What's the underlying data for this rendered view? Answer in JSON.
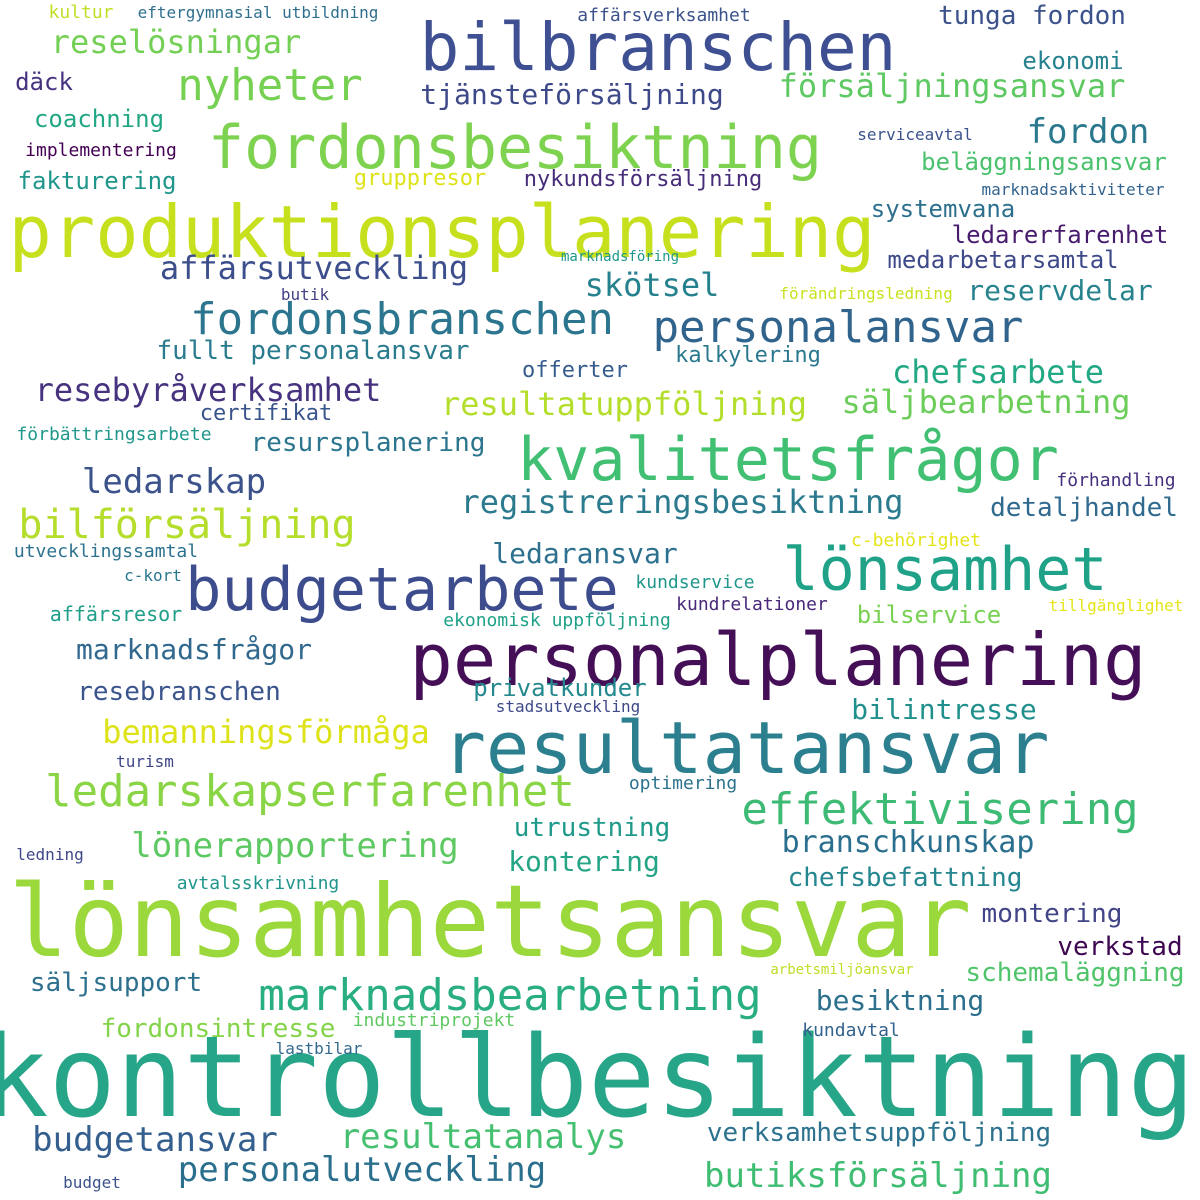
{
  "words": [
    {
      "text": "kontrollbesiktning",
      "color": "#27a589"
    },
    {
      "text": "lönsamhetsansvar",
      "color": "#9ad83c"
    },
    {
      "text": "produktionsplanering",
      "color": "#c6e01e"
    },
    {
      "text": "personalplanering",
      "color": "#440f56"
    },
    {
      "text": "resultatansvar",
      "color": "#2c7f8e"
    },
    {
      "text": "bilbranschen",
      "color": "#3e5092"
    },
    {
      "text": "fordonsbesiktning",
      "color": "#7dd24f"
    },
    {
      "text": "budgetarbete",
      "color": "#3c4c8d"
    },
    {
      "text": "lönsamhet",
      "color": "#1fa287"
    },
    {
      "text": "kvalitetsfrågor",
      "color": "#41bf73"
    },
    {
      "text": "marknadsbearbetning",
      "color": "#28ae80"
    },
    {
      "text": "ledarskapserfarenhet",
      "color": "#8ad545"
    },
    {
      "text": "effektivisering",
      "color": "#3dbb74"
    },
    {
      "text": "fordonsbranschen",
      "color": "#2b758e"
    },
    {
      "text": "personalansvar",
      "color": "#31648d"
    },
    {
      "text": "nyheter",
      "color": "#76d153"
    },
    {
      "text": "bilförsäljning",
      "color": "#b5dd2b"
    },
    {
      "text": "personalutveckling",
      "color": "#2b6f8e"
    },
    {
      "text": "lönerapportering",
      "color": "#5ec962"
    },
    {
      "text": "butiksförsäljning",
      "color": "#3fbd72"
    },
    {
      "text": "resultatanalys",
      "color": "#45bf70"
    },
    {
      "text": "budgetansvar",
      "color": "#345e8d"
    },
    {
      "text": "ledarskap",
      "color": "#3b528b"
    },
    {
      "text": "fordon",
      "color": "#2a788e"
    },
    {
      "text": "resebyråverksamhet",
      "color": "#46327e"
    },
    {
      "text": "registreringsbesiktning",
      "color": "#2b7a8e"
    },
    {
      "text": "försäljningsansvar",
      "color": "#5ec962"
    },
    {
      "text": "resultatuppföljning",
      "color": "#b4de2c"
    },
    {
      "text": "chefsarbete",
      "color": "#22a884"
    },
    {
      "text": "säljbearbetning",
      "color": "#6ccd5a"
    },
    {
      "text": "affärsutveckling",
      "color": "#3c4e8b"
    },
    {
      "text": "bemanningsförmåga",
      "color": "#dde318"
    },
    {
      "text": "reselösningar",
      "color": "#74d055"
    },
    {
      "text": "tjänsteförsäljning",
      "color": "#3e4989"
    },
    {
      "text": "skötsel",
      "color": "#26818e"
    },
    {
      "text": "branschkunskap",
      "color": "#2a6f8e"
    },
    {
      "text": "marknadsfrågor",
      "color": "#30688e"
    },
    {
      "text": "ledaransvar",
      "color": "#2d718e"
    },
    {
      "text": "reservdelar",
      "color": "#26838e"
    },
    {
      "text": "bilintresse",
      "color": "#21908d"
    },
    {
      "text": "kontering",
      "color": "#25a585"
    },
    {
      "text": "besiktning",
      "color": "#2d708e"
    },
    {
      "text": "detaljhandel",
      "color": "#306a8e"
    },
    {
      "text": "resebranschen",
      "color": "#3a548c"
    },
    {
      "text": "fullt personalansvar",
      "color": "#2a7b8e"
    },
    {
      "text": "resursplanering",
      "color": "#2b758e"
    },
    {
      "text": "verksamhetsuppföljning",
      "color": "#2c728e"
    },
    {
      "text": "schemaläggning",
      "color": "#50c46a"
    },
    {
      "text": "chefsbefattning",
      "color": "#24868e"
    },
    {
      "text": "tunga fordon",
      "color": "#3b528b"
    },
    {
      "text": "utrustning",
      "color": "#1f9a8a"
    },
    {
      "text": "privatkunder",
      "color": "#23898e"
    },
    {
      "text": "fordonsintresse",
      "color": "#84d44b"
    },
    {
      "text": "säljsupport",
      "color": "#2d708e"
    },
    {
      "text": "montering",
      "color": "#414487"
    },
    {
      "text": "verkstad",
      "color": "#3e0751"
    },
    {
      "text": "beläggningsansvar",
      "color": "#4ac16d"
    },
    {
      "text": "systemvana",
      "color": "#2d708e"
    },
    {
      "text": "medarbetarsamtal",
      "color": "#3e4989"
    },
    {
      "text": "ledarerfarenhet",
      "color": "#481b6d"
    },
    {
      "text": "coachning",
      "color": "#22a785"
    },
    {
      "text": "fakturering",
      "color": "#1f958b"
    },
    {
      "text": "nykundsförsäljning",
      "color": "#472c7a"
    },
    {
      "text": "gruppresor",
      "color": "#dde318"
    },
    {
      "text": "kalkylering",
      "color": "#2a788e"
    },
    {
      "text": "offerter",
      "color": "#365c8d"
    },
    {
      "text": "certifikat",
      "color": "#39558c"
    },
    {
      "text": "bilservice",
      "color": "#78d152"
    },
    {
      "text": "ekonomi",
      "color": "#26828e"
    },
    {
      "text": "däck",
      "color": "#46327e"
    },
    {
      "text": "affärsresor",
      "color": "#1f9e89"
    },
    {
      "text": "affärsverksamhet",
      "color": "#3b528b"
    },
    {
      "text": "implementering",
      "color": "#440154"
    },
    {
      "text": "förbättringsarbete",
      "color": "#1f988b"
    },
    {
      "text": "utvecklingssamtal",
      "color": "#2c728e"
    },
    {
      "text": "ekonomisk uppföljning",
      "color": "#1fa188"
    },
    {
      "text": "avtalsskrivning",
      "color": "#1f958b"
    },
    {
      "text": "förhandling",
      "color": "#46307e"
    },
    {
      "text": "kundservice",
      "color": "#1f968b"
    },
    {
      "text": "kundrelationer",
      "color": "#482878"
    },
    {
      "text": "c-behörighet",
      "color": "#e5e419"
    },
    {
      "text": "c-kort",
      "color": "#2a788e"
    },
    {
      "text": "optimering",
      "color": "#2c728e"
    },
    {
      "text": "industriprojekt",
      "color": "#5ec962"
    },
    {
      "text": "kundavtal",
      "color": "#33638d"
    },
    {
      "text": "lastbilar",
      "color": "#31688e"
    },
    {
      "text": "stadsutveckling",
      "color": "#3e4989"
    },
    {
      "text": "turism",
      "color": "#3f4788"
    },
    {
      "text": "ledning",
      "color": "#3f4788"
    },
    {
      "text": "serviceavtal",
      "color": "#3b528b"
    },
    {
      "text": "marknadsaktiviteter",
      "color": "#33638d"
    },
    {
      "text": "marknadsföring",
      "color": "#1f988b"
    },
    {
      "text": "butik",
      "color": "#424086"
    },
    {
      "text": "förändringsledning",
      "color": "#cae11f"
    },
    {
      "text": "arbetsmiljöansvar",
      "color": "#bddf26"
    },
    {
      "text": "tillgänglighet",
      "color": "#e5e419"
    },
    {
      "text": "kultur",
      "color": "#c0df25"
    },
    {
      "text": "eftergymnasial utbildning",
      "color": "#2e6f8e"
    },
    {
      "text": "budget",
      "color": "#3b528b"
    }
  ]
}
